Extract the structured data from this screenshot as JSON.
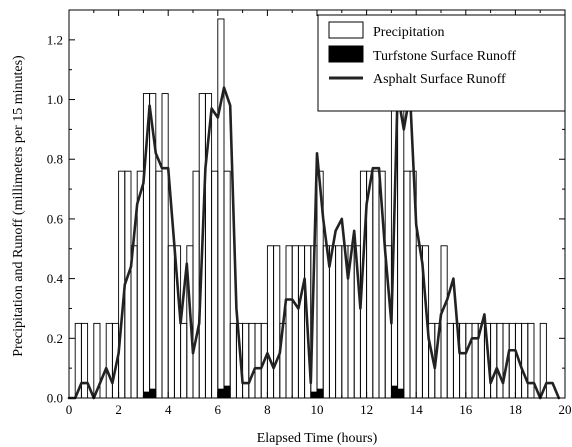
{
  "chart_data": {
    "type": "bar",
    "xlabel": "Elapsed Time (hours)",
    "ylabel": "Precipitation and Runoff (millimeters per 15 minutes)",
    "xlim": [
      0,
      20
    ],
    "ylim": [
      0,
      1.3
    ],
    "xticks": [
      "0",
      "2",
      "4",
      "6",
      "8",
      "10",
      "12",
      "14",
      "16",
      "18",
      "20"
    ],
    "yticks": [
      "0.0",
      "0.2",
      "0.4",
      "0.6",
      "0.8",
      "1.0",
      "1.2"
    ],
    "legend": {
      "position": "top-right",
      "entries": [
        "Precipitation",
        "Turfstone Surface Runoff",
        "Asphalt Surface Runoff"
      ]
    },
    "bar_width_hours": 0.25,
    "series": [
      {
        "name": "Precipitation",
        "type": "bar",
        "x": [
          0.375,
          0.625,
          1.125,
          1.625,
          1.875,
          2.125,
          2.375,
          2.625,
          2.875,
          3.125,
          3.375,
          3.625,
          3.875,
          4.125,
          4.375,
          4.625,
          4.875,
          5.125,
          5.375,
          5.625,
          5.875,
          6.125,
          6.375,
          6.625,
          6.875,
          7.125,
          7.375,
          7.625,
          7.875,
          8.125,
          8.375,
          8.625,
          8.875,
          9.125,
          9.375,
          9.625,
          9.875,
          10.125,
          10.375,
          10.625,
          10.875,
          11.125,
          11.375,
          11.625,
          11.875,
          12.125,
          12.375,
          12.625,
          12.875,
          13.125,
          13.375,
          13.625,
          13.875,
          14.125,
          14.375,
          14.625,
          14.875,
          15.125,
          15.375,
          15.625,
          15.875,
          16.125,
          16.375,
          16.625,
          16.875,
          17.125,
          17.375,
          17.625,
          17.875,
          18.125,
          18.375,
          18.625,
          19.125
        ],
        "values": [
          0.25,
          0.25,
          0.25,
          0.25,
          0.25,
          0.76,
          0.76,
          0.51,
          0.76,
          1.02,
          1.02,
          0.76,
          1.02,
          0.51,
          0.51,
          0.25,
          0.51,
          0.76,
          1.02,
          1.02,
          0.76,
          1.27,
          0.76,
          0.25,
          0.25,
          0.25,
          0.25,
          0.25,
          0.25,
          0.51,
          0.51,
          0.25,
          0.51,
          0.51,
          0.51,
          0.51,
          0.51,
          0.76,
          0.51,
          0.51,
          0.51,
          0.51,
          0.51,
          0.51,
          0.76,
          0.76,
          0.76,
          0.76,
          0.51,
          1.02,
          1.02,
          0.76,
          0.76,
          0.51,
          0.51,
          0.25,
          0.25,
          0.51,
          0.25,
          0.25,
          0.25,
          0.25,
          0.25,
          0.25,
          0.25,
          0.25,
          0.25,
          0.25,
          0.25,
          0.25,
          0.25,
          0.25,
          0.25
        ]
      },
      {
        "name": "Turfstone Surface Runoff",
        "type": "bar",
        "x": [
          3.125,
          3.375,
          6.125,
          6.375,
          9.875,
          10.125,
          13.125,
          13.375
        ],
        "values": [
          0.02,
          0.03,
          0.03,
          0.04,
          0.02,
          0.03,
          0.04,
          0.03
        ]
      },
      {
        "name": "Asphalt Surface Runoff",
        "type": "line",
        "x": [
          0,
          0.25,
          0.5,
          0.75,
          1.0,
          1.25,
          1.5,
          1.75,
          2.0,
          2.25,
          2.5,
          2.75,
          3.0,
          3.25,
          3.5,
          3.75,
          4.0,
          4.25,
          4.5,
          4.75,
          5.0,
          5.25,
          5.5,
          5.75,
          6.0,
          6.25,
          6.5,
          6.75,
          7.0,
          7.25,
          7.5,
          7.75,
          8.0,
          8.25,
          8.5,
          8.75,
          9.0,
          9.25,
          9.5,
          9.75,
          10.0,
          10.25,
          10.5,
          10.75,
          11.0,
          11.25,
          11.5,
          11.75,
          12.0,
          12.25,
          12.5,
          12.75,
          13.0,
          13.25,
          13.5,
          13.75,
          14.0,
          14.25,
          14.5,
          14.75,
          15.0,
          15.25,
          15.5,
          15.75,
          16.0,
          16.25,
          16.5,
          16.75,
          17.0,
          17.25,
          17.5,
          17.75,
          18.0,
          18.25,
          18.5,
          18.75,
          19.0,
          19.25,
          19.5,
          19.75
        ],
        "values": [
          0.0,
          0.0,
          0.05,
          0.05,
          0.0,
          0.05,
          0.1,
          0.05,
          0.15,
          0.38,
          0.44,
          0.65,
          0.72,
          0.98,
          0.82,
          0.77,
          0.77,
          0.51,
          0.25,
          0.45,
          0.15,
          0.25,
          0.77,
          0.97,
          0.94,
          1.04,
          0.98,
          0.3,
          0.05,
          0.05,
          0.1,
          0.1,
          0.15,
          0.1,
          0.15,
          0.33,
          0.33,
          0.3,
          0.4,
          0.05,
          0.82,
          0.6,
          0.44,
          0.56,
          0.6,
          0.4,
          0.56,
          0.3,
          0.65,
          0.77,
          0.77,
          0.49,
          0.25,
          1.02,
          0.9,
          1.02,
          0.58,
          0.45,
          0.2,
          0.1,
          0.28,
          0.33,
          0.4,
          0.15,
          0.15,
          0.2,
          0.2,
          0.28,
          0.05,
          0.1,
          0.05,
          0.16,
          0.16,
          0.1,
          0.05,
          0.05,
          0.0,
          0.05,
          0.05,
          0.0
        ]
      }
    ]
  }
}
